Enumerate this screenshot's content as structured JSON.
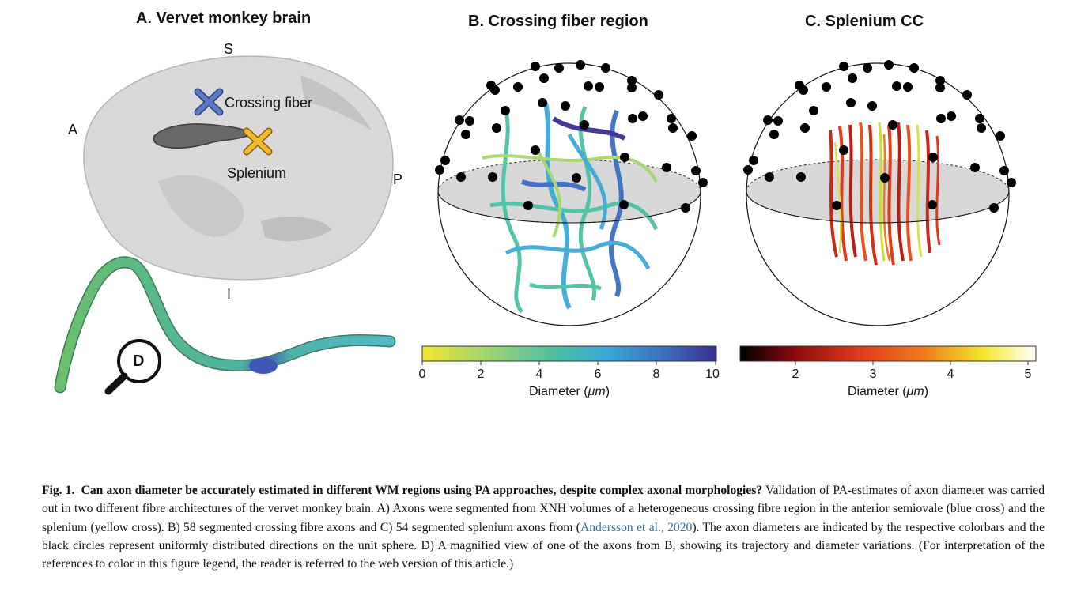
{
  "panel_a": {
    "title": "A. Vervet monkey brain",
    "orient_s": "S",
    "orient_a": "A",
    "orient_p": "P",
    "orient_i": "I",
    "crossing_label": "Crossing fiber",
    "splenium_label": "Splenium",
    "magnifier_label": "D",
    "crossing_color": "#4a6bb5",
    "splenium_color": "#f2b92a"
  },
  "panel_b": {
    "title": "B. Crossing fiber region",
    "colorbar": {
      "ticks": [
        "0",
        "2",
        "4",
        "6",
        "8",
        "10"
      ],
      "label_prefix": "Diameter (",
      "label_unit": "μm",
      "label_suffix": ")",
      "colors": [
        "#f2e62d",
        "#a8d66b",
        "#4cc0a3",
        "#3aa9d6",
        "#3c6fc0",
        "#3a2f8f"
      ]
    }
  },
  "panel_c": {
    "title": "C. Splenium CC",
    "colorbar": {
      "ticks": [
        "2",
        "3",
        "4",
        "5"
      ],
      "label_prefix": "Diameter (",
      "label_unit": "μm",
      "label_suffix": ")",
      "colors": [
        "#000000",
        "#8a0a0a",
        "#e03a1d",
        "#f07a1e",
        "#f5e62a",
        "#ffffff"
      ]
    }
  },
  "caption": {
    "fig_label": "Fig. 1.",
    "bold_text": "Can axon diameter be accurately estimated in different WM regions using PA approaches, despite complex axonal morphologies?",
    "text_1": " Validation of PA-estimates of axon diameter was carried out in two different fibre architectures of the vervet monkey brain. A) Axons were segmented from XNH volumes of a heterogeneous crossing fibre region in the anterior semiovale (blue cross) and the splenium (yellow cross). B) 58 segmented crossing fibre axons and C) 54 segmented splenium axons from (",
    "citation": "Andersson et al., 2020",
    "text_2": "). The axon diameters are indicated by the respective colorbars and the black circles represent uniformly distributed directions on the unit sphere. D) A magnified view of one of the axons from B, showing its trajectory and diameter variations. (For interpretation of the references to color in this figure legend, the reader is referred to the web version of this article.)"
  }
}
